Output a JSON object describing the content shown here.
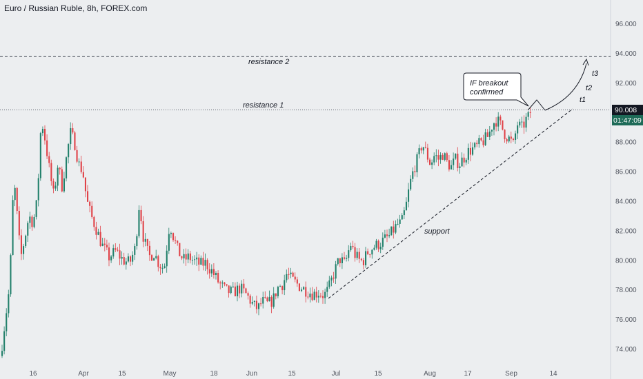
{
  "header": {
    "title": "Euro / Russian Ruble, 8h, FOREX.com"
  },
  "colors": {
    "background": "#eceef0",
    "bull": "#22806b",
    "bear": "#e04248",
    "text": "#131722",
    "axis_text": "#525660",
    "price_badge": "#131722",
    "timer_badge": "#1e6b58"
  },
  "chart_data": {
    "type": "candlestick",
    "title": "Euro / Russian Ruble, 8h, FOREX.com",
    "y_axis": {
      "side": "right",
      "ticks": [
        "74.000",
        "76.000",
        "78.000",
        "80.000",
        "82.000",
        "84.000",
        "86.000",
        "88.000",
        "90.000",
        "92.000",
        "94.000",
        "96.000"
      ],
      "ylim": [
        73.0,
        97.0
      ]
    },
    "x_axis": {
      "ticks": [
        "16",
        "Apr",
        "15",
        "May",
        "18",
        "Jun",
        "15",
        "Jul",
        "15",
        "Aug",
        "17",
        "Sep",
        "14"
      ]
    },
    "last_price": "90.008",
    "countdown": "01:47:09",
    "anchors": [
      [
        0,
        73.5
      ],
      [
        4,
        73.9
      ],
      [
        10,
        76.1
      ],
      [
        16,
        78.2
      ],
      [
        22,
        85.6
      ],
      [
        26,
        83.5
      ],
      [
        32,
        80.1
      ],
      [
        38,
        81.5
      ],
      [
        44,
        83.0
      ],
      [
        50,
        82.5
      ],
      [
        56,
        84.0
      ],
      [
        62,
        89.6
      ],
      [
        68,
        88.0
      ],
      [
        74,
        86.0
      ],
      [
        80,
        84.3
      ],
      [
        86,
        86.5
      ],
      [
        92,
        85.0
      ],
      [
        98,
        86.8
      ],
      [
        104,
        88.6
      ],
      [
        110,
        88.0
      ],
      [
        116,
        86.5
      ],
      [
        122,
        86.0
      ],
      [
        128,
        84.0
      ],
      [
        134,
        83.0
      ],
      [
        140,
        82.3
      ],
      [
        150,
        81.0
      ],
      [
        160,
        80.2
      ],
      [
        170,
        80.6
      ],
      [
        180,
        80.0
      ],
      [
        190,
        79.8
      ],
      [
        198,
        80.8
      ],
      [
        204,
        83.9
      ],
      [
        210,
        81.5
      ],
      [
        218,
        80.2
      ],
      [
        225,
        80.5
      ],
      [
        232,
        79.8
      ],
      [
        240,
        79.4
      ],
      [
        248,
        82.5
      ],
      [
        254,
        81.5
      ],
      [
        260,
        80.6
      ],
      [
        268,
        80.0
      ],
      [
        276,
        80.2
      ],
      [
        284,
        79.9
      ],
      [
        292,
        79.7
      ],
      [
        300,
        79.8
      ],
      [
        310,
        79.2
      ],
      [
        320,
        78.4
      ],
      [
        330,
        77.9
      ],
      [
        340,
        77.8
      ],
      [
        350,
        78.1
      ],
      [
        360,
        77.6
      ],
      [
        370,
        76.9
      ],
      [
        376,
        76.7
      ],
      [
        382,
        77.2
      ],
      [
        390,
        77.0
      ],
      [
        398,
        77.3
      ],
      [
        404,
        78.1
      ],
      [
        412,
        78.4
      ],
      [
        418,
        79.1
      ],
      [
        424,
        78.7
      ],
      [
        432,
        78.4
      ],
      [
        440,
        78.1
      ],
      [
        448,
        77.9
      ],
      [
        456,
        77.7
      ],
      [
        464,
        77.8
      ],
      [
        472,
        77.6
      ],
      [
        478,
        78.0
      ],
      [
        486,
        79.1
      ],
      [
        494,
        80.1
      ],
      [
        502,
        79.7
      ],
      [
        510,
        81.1
      ],
      [
        516,
        80.4
      ],
      [
        522,
        80.0
      ],
      [
        528,
        79.9
      ],
      [
        536,
        80.6
      ],
      [
        544,
        80.9
      ],
      [
        552,
        81.1
      ],
      [
        560,
        81.4
      ],
      [
        566,
        81.6
      ],
      [
        572,
        82.0
      ],
      [
        578,
        82.4
      ],
      [
        584,
        82.5
      ],
      [
        590,
        83.5
      ],
      [
        596,
        85.1
      ],
      [
        602,
        86.2
      ],
      [
        608,
        86.9
      ],
      [
        614,
        87.9
      ],
      [
        620,
        87.2
      ],
      [
        626,
        86.5
      ],
      [
        632,
        87.1
      ],
      [
        638,
        86.8
      ],
      [
        644,
        87.2
      ],
      [
        650,
        86.6
      ],
      [
        656,
        86.3
      ],
      [
        662,
        86.8
      ],
      [
        668,
        86.5
      ],
      [
        674,
        86.9
      ],
      [
        680,
        87.3
      ],
      [
        686,
        87.5
      ],
      [
        692,
        87.6
      ],
      [
        698,
        87.9
      ],
      [
        704,
        88.1
      ],
      [
        710,
        88.4
      ],
      [
        716,
        89.2
      ],
      [
        722,
        89.5
      ],
      [
        728,
        89.1
      ],
      [
        734,
        88.5
      ],
      [
        740,
        88.2
      ],
      [
        746,
        87.8
      ],
      [
        752,
        89.2
      ],
      [
        758,
        88.9
      ],
      [
        764,
        89.4
      ],
      [
        768,
        90.0
      ]
    ],
    "annotations": [
      {
        "type": "hline",
        "y": 90.0,
        "style": "dotted",
        "label": "resistance 1"
      },
      {
        "type": "hline",
        "y": 93.65,
        "style": "dashed",
        "label": "resistance 2"
      },
      {
        "type": "trendline",
        "style": "dashed",
        "label": "support",
        "from_y": 77.3,
        "to_y": 90.0
      },
      {
        "type": "callout",
        "text": [
          "IF breakout",
          "confirmed"
        ]
      },
      {
        "type": "targets",
        "labels": [
          "t1",
          "t2",
          "t3"
        ]
      }
    ]
  },
  "annotations_text": {
    "res1": "resistance 1",
    "res2": "resistance 2",
    "support": "support",
    "callout1": "IF breakout",
    "callout2": "confirmed",
    "t1": "t1",
    "t2": "t2",
    "t3": "t3"
  }
}
